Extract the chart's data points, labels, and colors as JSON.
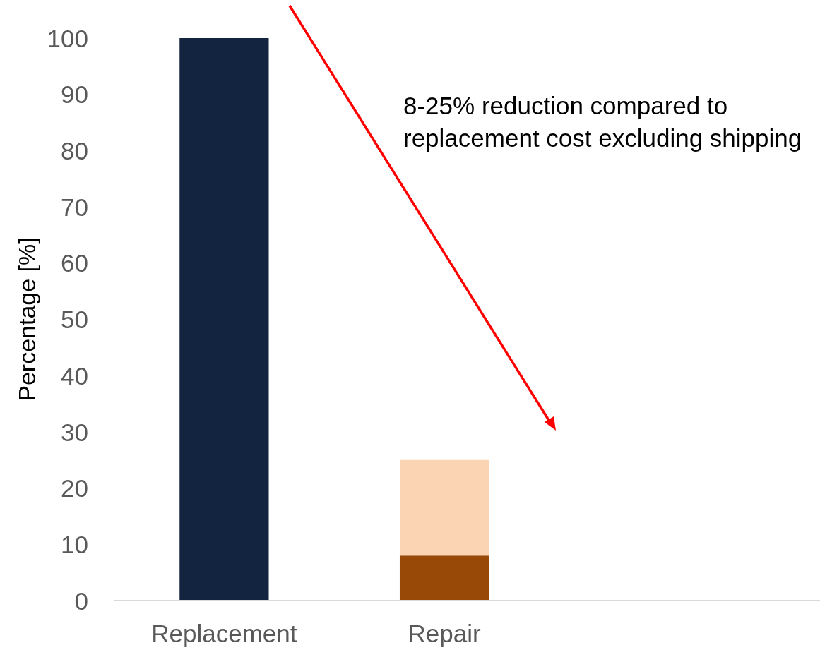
{
  "chart_data": {
    "type": "bar",
    "ylabel": "Percentage [%]",
    "categories": [
      "Replacement",
      "Repair",
      null
    ],
    "series": [
      {
        "color": "#12243f",
        "values": [
          100,
          null,
          null
        ]
      },
      {
        "color": "#984807",
        "values": [
          null,
          8,
          null
        ]
      },
      {
        "color": "#fbd4b4",
        "values": [
          null,
          17,
          null
        ]
      }
    ],
    "stacked": true,
    "ylim": [
      0,
      100
    ],
    "yticks": [
      0,
      10,
      20,
      30,
      40,
      50,
      60,
      70,
      80,
      90,
      100
    ],
    "annotations": [
      "8-25% reduction compared to\nreplacement cost excluding shipping"
    ]
  }
}
